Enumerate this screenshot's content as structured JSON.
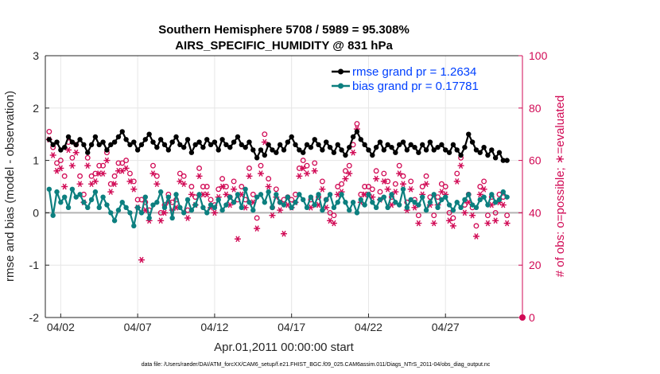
{
  "chart_data": {
    "type": "line",
    "title": "Southern Hemisphere 5708 / 5989 = 95.308%",
    "subtitle": "AIRS_SPECIFIC_HUMIDITY @ 831 hPa",
    "xlabel": "Apr.01,2011 00:00:00 start",
    "ylabel": "rmse and bias (model - observation)",
    "y2label": "# of obs: o=possible; ∗=evaluated",
    "xlim": [
      1,
      32
    ],
    "ylim": [
      -2,
      3
    ],
    "y2lim": [
      0,
      100
    ],
    "xticks": [
      {
        "x": 2,
        "label": "04/02"
      },
      {
        "x": 7,
        "label": "04/07"
      },
      {
        "x": 12,
        "label": "04/12"
      },
      {
        "x": 17,
        "label": "04/17"
      },
      {
        "x": 22,
        "label": "04/22"
      },
      {
        "x": 27,
        "label": "04/27"
      }
    ],
    "yticks": [
      "-2",
      "-1",
      "0",
      "1",
      "2",
      "3"
    ],
    "y2ticks": [
      "0",
      "20",
      "40",
      "60",
      "80",
      "100"
    ],
    "footnote": "data file: /Users/raeder/DAI/ATM_forcXX/CAM6_setup/f.e21.FHIST_BGC.f09_025.CAM6assim.011/Diags_NTrS_2011-04/obs_diag_output.nc",
    "legend": {
      "placement": "top-right",
      "entries": [
        "rmse grand pr = 1.2634",
        "bias grand pr = 0.17781"
      ]
    },
    "colors": {
      "rmse": "#000000",
      "bias": "#0c7f7f",
      "counts": "#d10a55",
      "zero_line": "#b3b3b3",
      "legend_text": "#0040ff"
    },
    "n_points": 120,
    "x_start": 1.25,
    "x_step": 0.25,
    "series": [
      {
        "name": "rmse grand pr = 1.2634",
        "axis": "left",
        "values": [
          1.4,
          1.3,
          1.35,
          1.2,
          1.25,
          1.45,
          1.35,
          1.3,
          1.4,
          1.3,
          1.15,
          1.3,
          1.45,
          1.3,
          1.35,
          1.2,
          1.3,
          1.35,
          1.45,
          1.55,
          1.4,
          1.3,
          1.35,
          1.2,
          1.3,
          1.4,
          1.5,
          1.35,
          1.25,
          1.4,
          1.3,
          1.2,
          1.35,
          1.45,
          1.3,
          1.25,
          1.4,
          1.15,
          1.3,
          1.35,
          1.25,
          1.4,
          1.3,
          1.35,
          1.2,
          1.4,
          1.3,
          1.25,
          1.35,
          1.45,
          1.3,
          1.25,
          1.35,
          1.2,
          1.05,
          1.2,
          1.1,
          1.3,
          1.2,
          1.15,
          1.3,
          1.2,
          1.35,
          1.45,
          1.3,
          1.2,
          1.15,
          1.3,
          1.25,
          1.4,
          1.3,
          1.2,
          1.35,
          1.25,
          1.15,
          1.3,
          1.2,
          1.1,
          1.25,
          1.45,
          1.55,
          1.4,
          1.3,
          1.2,
          1.1,
          1.25,
          1.35,
          1.2,
          1.3,
          1.25,
          1.15,
          1.3,
          1.35,
          1.2,
          1.3,
          1.25,
          1.15,
          1.3,
          1.2,
          1.35,
          1.2,
          1.25,
          1.3,
          1.2,
          1.15,
          1.3,
          1.2,
          1.1,
          1.25,
          1.5,
          1.35,
          1.2,
          1.15,
          1.25,
          1.1,
          1.2,
          1.05,
          1.15,
          1.0,
          1.0
        ]
      },
      {
        "name": "bias grand pr = 0.17781",
        "axis": "left",
        "values": [
          0.45,
          -0.05,
          0.4,
          0.2,
          0.3,
          0.1,
          0.45,
          0.3,
          0.35,
          0.2,
          0.1,
          0.25,
          0.4,
          0.1,
          0.3,
          0.15,
          0.0,
          -0.15,
          0.05,
          0.2,
          0.1,
          0.0,
          -0.25,
          0.1,
          0.0,
          0.3,
          -0.1,
          0.15,
          0.2,
          0.4,
          0.1,
          0.3,
          -0.1,
          0.35,
          0.1,
          0.0,
          0.25,
          0.05,
          0.15,
          0.35,
          0.1,
          0.0,
          0.15,
          0.1,
          0.25,
          0.05,
          0.15,
          0.3,
          0.2,
          0.35,
          0.1,
          0.45,
          0.2,
          0.05,
          0.3,
          0.35,
          0.2,
          0.4,
          0.1,
          0.35,
          0.2,
          0.15,
          0.3,
          0.1,
          0.2,
          0.35,
          0.25,
          0.1,
          0.3,
          0.15,
          0.35,
          0.05,
          0.25,
          0.35,
          0.1,
          0.2,
          0.35,
          0.2,
          0.05,
          0.2,
          0.0,
          0.25,
          0.15,
          0.35,
          0.2,
          0.1,
          0.25,
          0.3,
          0.1,
          0.35,
          0.2,
          0.15,
          0.45,
          0.1,
          0.25,
          0.2,
          0.15,
          0.3,
          0.05,
          0.2,
          0.35,
          0.1,
          0.25,
          0.3,
          0.15,
          0.05,
          0.2,
          0.1,
          0.25,
          0.35,
          0.15,
          0.1,
          0.25,
          0.3,
          0.15,
          0.35,
          0.2,
          0.25,
          0.4,
          0.3
        ]
      },
      {
        "name": "# of obs possible",
        "axis": "right",
        "values": [
          71,
          65,
          59,
          60,
          54,
          67,
          61,
          66,
          54,
          47,
          61,
          54,
          55,
          58,
          58,
          63,
          51,
          54,
          59,
          59,
          60,
          55,
          52,
          45,
          45,
          44,
          41,
          58,
          54,
          40,
          43,
          47,
          44,
          45,
          55,
          54,
          41,
          50,
          46,
          57,
          50,
          50,
          45,
          43,
          49,
          53,
          50,
          46,
          52,
          45,
          50,
          45,
          57,
          47,
          38,
          58,
          70,
          53,
          42,
          49,
          44,
          45,
          46,
          45,
          47,
          57,
          60,
          58,
          45,
          59,
          46,
          52,
          45,
          40,
          39,
          50,
          51,
          56,
          58,
          66,
          74,
          47,
          50,
          50,
          49,
          56,
          48,
          55,
          52,
          46,
          51,
          58,
          54,
          44,
          52,
          45,
          39,
          50,
          54,
          46,
          39,
          46,
          51,
          50,
          40,
          38,
          55,
          61,
          43,
          47,
          42,
          35,
          50,
          52,
          39,
          46,
          40,
          47,
          46,
          39
        ]
      },
      {
        "name": "# of obs evaluated",
        "axis": "right",
        "values": [
          68,
          62,
          56,
          57,
          50,
          64,
          58,
          63,
          51,
          44,
          58,
          51,
          52,
          55,
          55,
          60,
          48,
          51,
          56,
          56,
          57,
          52,
          49,
          42,
          22,
          41,
          37,
          55,
          51,
          37,
          40,
          44,
          41,
          42,
          52,
          51,
          38,
          47,
          43,
          54,
          47,
          47,
          42,
          40,
          46,
          50,
          47,
          43,
          49,
          30,
          47,
          42,
          54,
          44,
          34,
          55,
          67,
          50,
          39,
          46,
          41,
          32,
          43,
          42,
          44,
          54,
          57,
          55,
          42,
          56,
          43,
          49,
          42,
          37,
          36,
          47,
          48,
          53,
          55,
          63,
          72,
          44,
          47,
          47,
          46,
          53,
          45,
          52,
          49,
          43,
          48,
          55,
          51,
          41,
          49,
          42,
          36,
          47,
          51,
          43,
          36,
          43,
          48,
          47,
          37,
          35,
          52,
          58,
          40,
          44,
          39,
          31,
          47,
          49,
          36,
          43,
          37,
          44,
          43,
          36
        ]
      }
    ],
    "endpoint_marker": {
      "x": 32,
      "y2": 0
    }
  }
}
